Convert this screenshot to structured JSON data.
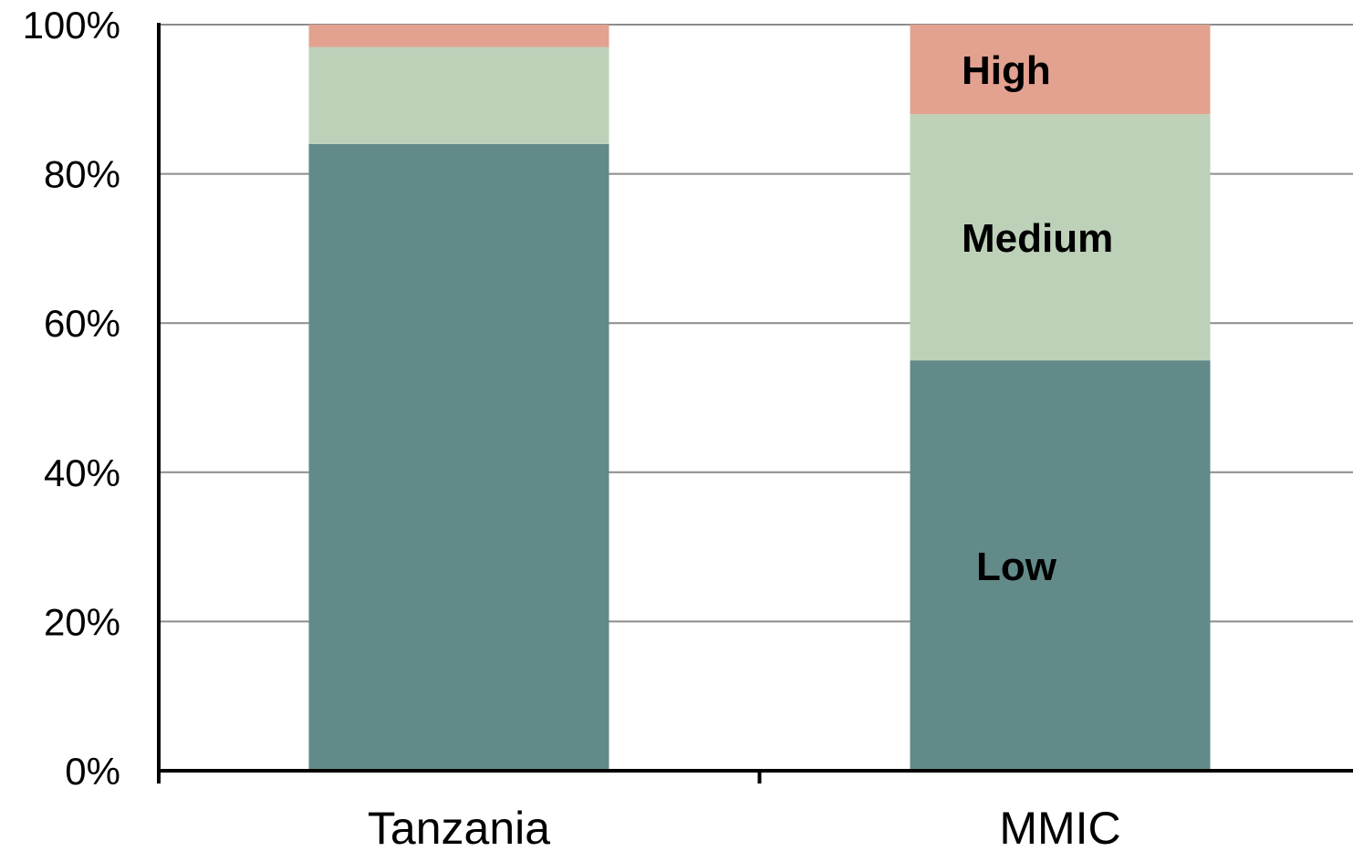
{
  "chart_data": {
    "type": "bar",
    "stacked": true,
    "categories": [
      "Tanzania",
      "MMIC"
    ],
    "series": [
      {
        "name": "Low",
        "values": [
          84,
          55
        ],
        "color": "#618a88"
      },
      {
        "name": "Medium",
        "values": [
          13,
          33
        ],
        "color": "#bdd1b9"
      },
      {
        "name": "High",
        "values": [
          3,
          12
        ],
        "color": "#e3a190"
      }
    ],
    "segment_labels_on_category": "MMIC",
    "ylim": [
      0,
      100
    ],
    "yticks": [
      {
        "value": 0,
        "label": "0%"
      },
      {
        "value": 20,
        "label": "20%"
      },
      {
        "value": 40,
        "label": "40%"
      },
      {
        "value": 60,
        "label": "60%"
      },
      {
        "value": 80,
        "label": "80%"
      },
      {
        "value": 100,
        "label": "100%"
      }
    ],
    "grid": true,
    "legend": "none"
  }
}
